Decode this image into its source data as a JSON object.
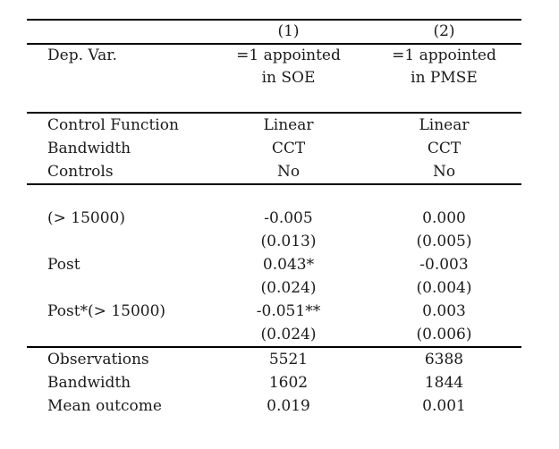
{
  "table": {
    "col_headers": [
      "(1)",
      "(2)"
    ],
    "dep_var": {
      "label": "Dep. Var.",
      "col1_line1": "=1 appointed",
      "col1_line2": "in SOE",
      "col2_line1": "=1 appointed",
      "col2_line2": "in PMSE"
    },
    "spec_rows": [
      {
        "label": "Control Function",
        "col1": "Linear",
        "col2": "Linear"
      },
      {
        "label": "Bandwidth",
        "col1": "CCT",
        "col2": "CCT"
      },
      {
        "label": "Controls",
        "col1": "No",
        "col2": "No"
      }
    ],
    "coef_rows": [
      {
        "label": "(> 15000)",
        "col1": "-0.005",
        "col2": "0.000"
      },
      {
        "label": "",
        "col1": "(0.013)",
        "col2": "(0.005)"
      },
      {
        "label": "Post",
        "col1": "0.043*",
        "col2": "-0.003"
      },
      {
        "label": "",
        "col1": "(0.024)",
        "col2": "(0.004)"
      },
      {
        "label": "Post*(> 15000)",
        "col1": "-0.051**",
        "col2": "0.003"
      },
      {
        "label": "",
        "col1": "(0.024)",
        "col2": "(0.006)"
      }
    ],
    "stat_rows": [
      {
        "label": "Observations",
        "col1": "5521",
        "col2": "6388"
      },
      {
        "label": "Bandwidth",
        "col1": "1602",
        "col2": "1844"
      },
      {
        "label": "Mean outcome",
        "col1": "0.019",
        "col2": "0.001"
      }
    ],
    "colors": {
      "text": "#1b1b1b",
      "rule": "#000000",
      "background": "#ffffff"
    }
  }
}
